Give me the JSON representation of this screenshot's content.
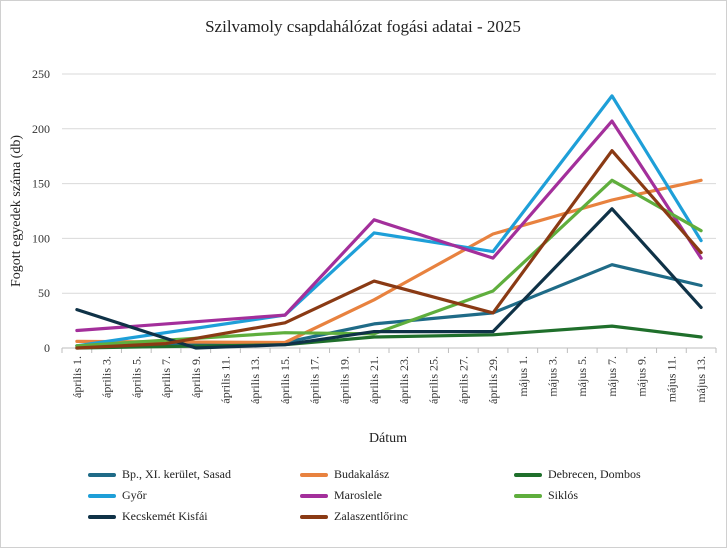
{
  "chart_data": {
    "type": "line",
    "title": "Szilvamoly csapdahálózat fogási adatai - 2025",
    "xlabel": "Dátum",
    "ylabel": "Fogott egyedek száma (db)",
    "ylim": [
      0,
      250
    ],
    "yticks": [
      0,
      50,
      100,
      150,
      200,
      250
    ],
    "grid": "horizontal",
    "legend_position": "bottom",
    "x": [
      "április 1.",
      "április 3.",
      "április 5.",
      "április 7.",
      "április 9.",
      "április 11.",
      "április 13.",
      "április 15.",
      "április 17.",
      "április 19.",
      "április 21.",
      "április 23.",
      "április 25.",
      "április 27.",
      "április 29.",
      "május 1.",
      "május 3.",
      "május 5.",
      "május 7.",
      "május 9.",
      "május 11.",
      "május 13."
    ],
    "series": [
      {
        "name": "Bp., XI. kerület, Sasad",
        "color": "#1f6b87",
        "points": [
          [
            0,
            2
          ],
          [
            7,
            5
          ],
          [
            10,
            22
          ],
          [
            14,
            32
          ],
          [
            18,
            76
          ],
          [
            21,
            57
          ]
        ]
      },
      {
        "name": "Budakalász",
        "color": "#e8823f",
        "points": [
          [
            0,
            6
          ],
          [
            7,
            5
          ],
          [
            10,
            44
          ],
          [
            14,
            104
          ],
          [
            18,
            135
          ],
          [
            21,
            153
          ]
        ]
      },
      {
        "name": "Debrecen, Dombos",
        "color": "#1f6f2b",
        "points": [
          [
            0,
            0
          ],
          [
            7,
            3
          ],
          [
            10,
            10
          ],
          [
            14,
            12
          ],
          [
            18,
            20
          ],
          [
            21,
            10
          ]
        ]
      },
      {
        "name": "Győr",
        "color": "#1e9fd8",
        "points": [
          [
            0,
            2
          ],
          [
            7,
            30
          ],
          [
            10,
            105
          ],
          [
            14,
            88
          ],
          [
            18,
            230
          ],
          [
            21,
            98
          ]
        ]
      },
      {
        "name": "Maroslele",
        "color": "#a32f9b",
        "points": [
          [
            0,
            16
          ],
          [
            7,
            30
          ],
          [
            10,
            117
          ],
          [
            14,
            82
          ],
          [
            18,
            207
          ],
          [
            21,
            82
          ]
        ]
      },
      {
        "name": "Siklós",
        "color": "#5fae3d",
        "points": [
          [
            0,
            2
          ],
          [
            7,
            14
          ],
          [
            10,
            13
          ],
          [
            14,
            52
          ],
          [
            18,
            153
          ],
          [
            21,
            107
          ]
        ]
      },
      {
        "name": "Kecskemét Kisfái",
        "color": "#0f3247",
        "points": [
          [
            0,
            35
          ],
          [
            4,
            0
          ],
          [
            7,
            3
          ],
          [
            10,
            15
          ],
          [
            14,
            15
          ],
          [
            18,
            127
          ],
          [
            21,
            37
          ]
        ]
      },
      {
        "name": "Zalaszentlőrinc",
        "color": "#8a3a14",
        "points": [
          [
            0,
            0
          ],
          [
            3,
            4
          ],
          [
            7,
            23
          ],
          [
            10,
            61
          ],
          [
            14,
            32
          ],
          [
            18,
            180
          ],
          [
            21,
            87
          ]
        ]
      }
    ]
  }
}
